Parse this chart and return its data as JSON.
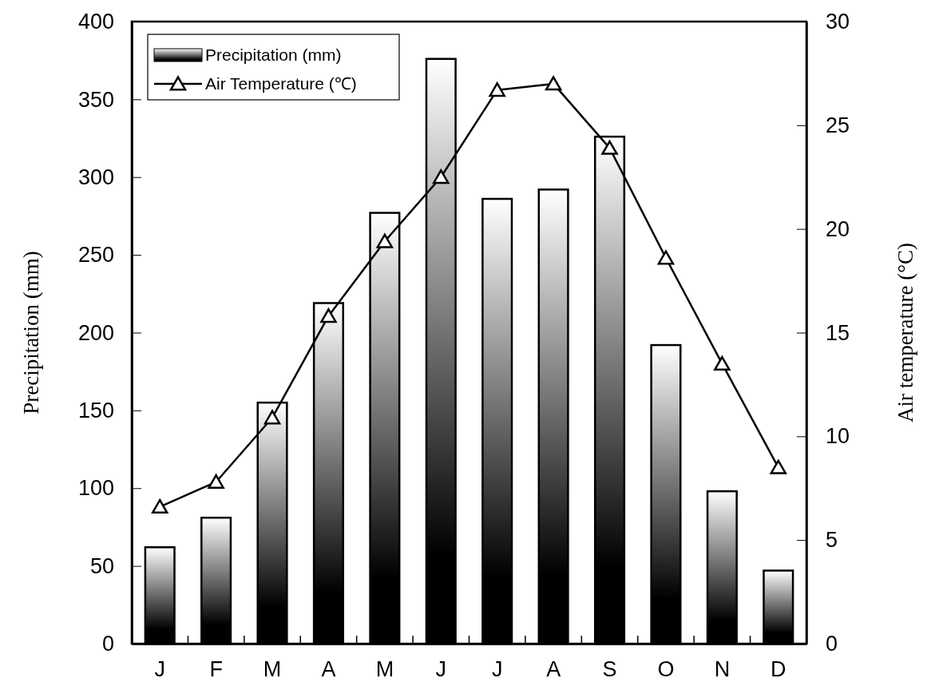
{
  "chart_data": {
    "type": "bar",
    "xlabel": null,
    "ylabel": "Precipitation (mm)",
    "y2label": "Air temperature (°C)",
    "categories": [
      "J",
      "F",
      "M",
      "A",
      "M",
      "J",
      "J",
      "A",
      "S",
      "O",
      "N",
      "D"
    ],
    "series": [
      {
        "name": "Precipitation (mm)",
        "color": "#000000",
        "values": [
          62,
          81,
          155,
          219,
          277,
          376,
          286,
          292,
          326,
          192,
          98,
          47
        ]
      },
      {
        "name": "Air Temperature (℃)",
        "type": "line",
        "axis": "y2",
        "color": "#000000",
        "marker": "triangle",
        "line_style": "solid",
        "values": [
          6.6,
          7.8,
          10.9,
          15.8,
          19.4,
          22.5,
          26.7,
          27.0,
          23.9,
          18.6,
          13.5,
          8.5
        ]
      }
    ],
    "ylim": [
      0,
      400
    ],
    "yticks": [
      0,
      50,
      100,
      150,
      200,
      250,
      300,
      350,
      400
    ],
    "y2lim": [
      0,
      30
    ],
    "y2ticks": [
      0,
      5,
      10,
      15,
      20,
      25,
      30
    ],
    "legend": "top left"
  }
}
